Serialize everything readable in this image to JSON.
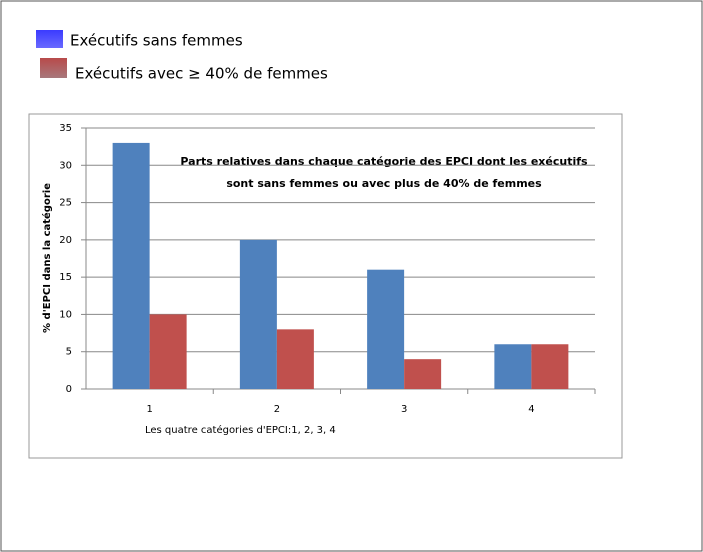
{
  "chart_data": {
    "type": "bar",
    "title": [
      "Parts relatives dans chaque catégorie des EPCI  dont  les exécutifs",
      "sont sans femmes ou avec  plus de 40% de femmes"
    ],
    "x_label": "Les quatre catégories d'EPCI:1, 2, 3, 4",
    "y_label": "% d'EPCI dans la catégorie",
    "categories": [
      "1",
      "2",
      "3",
      "4"
    ],
    "series": [
      {
        "name": "Exécutifs sans femmes",
        "color": "#4f81bd",
        "values": [
          33,
          20,
          16,
          6
        ]
      },
      {
        "name": "Exécutifs avec ≥ 40% de femmes",
        "color": "#c0504d",
        "values": [
          10,
          8,
          4,
          6
        ]
      }
    ],
    "ylim": [
      0,
      35
    ],
    "yticks": [
      0,
      5,
      10,
      15,
      20,
      25,
      30,
      35
    ],
    "grid": true
  }
}
